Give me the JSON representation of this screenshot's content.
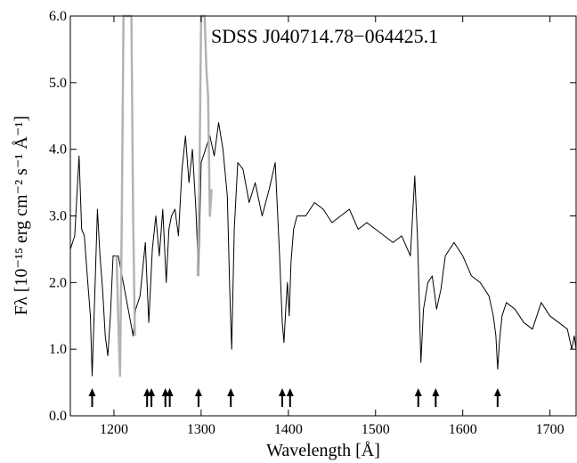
{
  "chart_data": {
    "type": "line",
    "title": "SDSS J040714.78−064425.1",
    "xlabel": "Wavelength [Å]",
    "ylabel": "Fλ [10⁻¹⁵ erg cm⁻² s⁻¹ Å⁻¹]",
    "xlim": [
      1150,
      1730
    ],
    "ylim": [
      0.0,
      6.0
    ],
    "xticks": [
      1200,
      1300,
      1400,
      1500,
      1600,
      1700
    ],
    "xtick_labels": [
      "1200",
      "1300",
      "1400",
      "1500",
      "1600",
      "1700"
    ],
    "yticks": [
      0,
      1,
      2,
      3,
      4,
      5,
      6
    ],
    "ytick_labels": [
      "0.0",
      "1.0",
      "2.0",
      "3.0",
      "4.0",
      "5.0",
      "6.0"
    ],
    "grid": false,
    "series": [
      {
        "color": "#000000",
        "x": [
          1150,
          1155,
          1160,
          1163,
          1166,
          1170,
          1173,
          1175,
          1178,
          1181,
          1184,
          1187,
          1190,
          1193,
          1196,
          1199,
          1203,
          1205,
          1222,
          1225,
          1230,
          1236,
          1240,
          1244,
          1248,
          1252,
          1256,
          1260,
          1263,
          1266,
          1270,
          1274,
          1278,
          1282,
          1286,
          1290,
          1294,
          1297,
          1300,
          1305,
          1310,
          1315,
          1320,
          1325,
          1330,
          1333,
          1335,
          1338,
          1342,
          1348,
          1355,
          1362,
          1370,
          1378,
          1385,
          1390,
          1393,
          1395,
          1397,
          1399,
          1401,
          1403,
          1406,
          1410,
          1420,
          1430,
          1440,
          1450,
          1460,
          1470,
          1480,
          1490,
          1500,
          1510,
          1520,
          1530,
          1540,
          1545,
          1548,
          1550,
          1552,
          1555,
          1560,
          1565,
          1568,
          1570,
          1575,
          1580,
          1590,
          1600,
          1610,
          1620,
          1630,
          1635,
          1638,
          1640,
          1642,
          1645,
          1650,
          1660,
          1670,
          1680,
          1690,
          1700,
          1710,
          1720,
          1725,
          1728,
          1730
        ],
        "y": [
          2.5,
          2.7,
          3.9,
          2.8,
          2.7,
          2.0,
          1.5,
          0.6,
          1.8,
          3.1,
          2.4,
          1.9,
          1.2,
          0.9,
          1.5,
          2.4,
          2.4,
          2.4,
          1.2,
          1.6,
          1.8,
          2.6,
          1.4,
          2.5,
          3.0,
          2.4,
          3.1,
          2.0,
          2.8,
          3.0,
          3.1,
          2.7,
          3.7,
          4.2,
          3.5,
          4.0,
          3.1,
          2.1,
          3.8,
          4.0,
          4.2,
          3.9,
          4.4,
          4.0,
          3.3,
          1.8,
          1.0,
          2.8,
          3.8,
          3.7,
          3.2,
          3.5,
          3.0,
          3.4,
          3.8,
          2.4,
          1.4,
          1.1,
          1.6,
          2.0,
          1.5,
          2.3,
          2.8,
          3.0,
          3.0,
          3.2,
          3.1,
          2.9,
          3.0,
          3.1,
          2.8,
          2.9,
          2.8,
          2.7,
          2.6,
          2.7,
          2.4,
          3.6,
          2.7,
          1.8,
          0.8,
          1.6,
          2.0,
          2.1,
          1.8,
          1.6,
          1.9,
          2.4,
          2.6,
          2.4,
          2.1,
          2.0,
          1.8,
          1.5,
          1.2,
          0.7,
          1.1,
          1.5,
          1.7,
          1.6,
          1.4,
          1.3,
          1.7,
          1.5,
          1.4,
          1.3,
          1.0,
          1.2,
          1.0
        ]
      },
      {
        "color": "#b3b3b3",
        "x": [
          1203,
          1205,
          1207,
          1209,
          1211,
          1214,
          1217,
          1220,
          1222,
          1224
        ],
        "y": [
          2.4,
          1.4,
          0.6,
          3.0,
          6.0,
          6.0,
          6.0,
          6.0,
          3.0,
          1.2
        ]
      },
      {
        "color": "#b3b3b3",
        "x": [
          1296,
          1298,
          1300,
          1302,
          1304,
          1306,
          1308,
          1310,
          1312
        ],
        "y": [
          2.1,
          3.5,
          6.0,
          6.0,
          6.0,
          5.2,
          4.8,
          3.0,
          3.4
        ]
      }
    ],
    "annotations": [
      {
        "type": "arrow",
        "x": [
          1175,
          1238,
          1243,
          1259,
          1264,
          1297,
          1334,
          1393,
          1402,
          1549,
          1569,
          1640
        ]
      }
    ]
  }
}
